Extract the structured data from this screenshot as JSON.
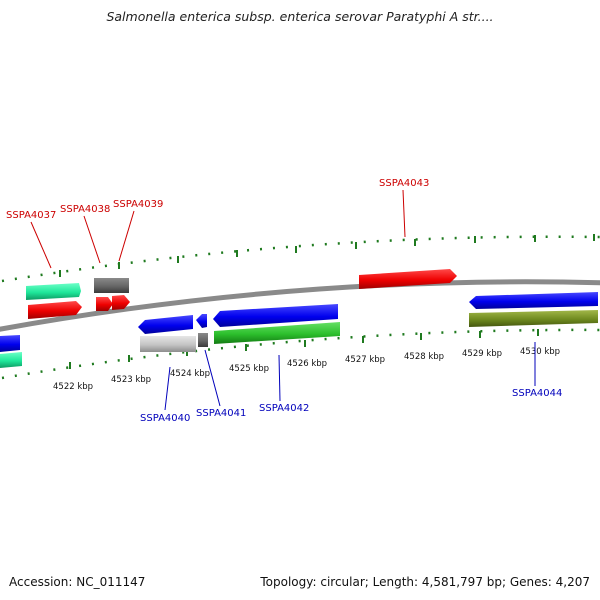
{
  "header": {
    "title": "Salmonella enterica subsp. enterica serovar Paratyphi A str...."
  },
  "footer": {
    "accession": "Accession: NC_011147",
    "summary": "Topology: circular; Length: 4,581,797 bp; Genes: 4,207"
  },
  "colors": {
    "backbone": "#8a8a8a",
    "tick": "#1f7a1f",
    "forward_label": "#cc0000",
    "reverse_label": "#0000bb"
  },
  "scale_ticks": [
    "4522 kbp",
    "4523 kbp",
    "4524 kbp",
    "4525 kbp",
    "4526 kbp",
    "4527 kbp",
    "4528 kbp",
    "4529 kbp",
    "4530 kbp"
  ],
  "forward_labels": [
    {
      "id": "SSPA4037",
      "text": "SSPA4037"
    },
    {
      "id": "SSPA4038",
      "text": "SSPA4038"
    },
    {
      "id": "SSPA4039",
      "text": "SSPA4039"
    },
    {
      "id": "SSPA4043",
      "text": "SSPA4043"
    }
  ],
  "reverse_labels": [
    {
      "id": "SSPA4040",
      "text": "SSPA4040"
    },
    {
      "id": "SSPA4041",
      "text": "SSPA4041"
    },
    {
      "id": "SSPA4042",
      "text": "SSPA4042"
    },
    {
      "id": "SSPA4044",
      "text": "SSPA4044"
    }
  ]
}
